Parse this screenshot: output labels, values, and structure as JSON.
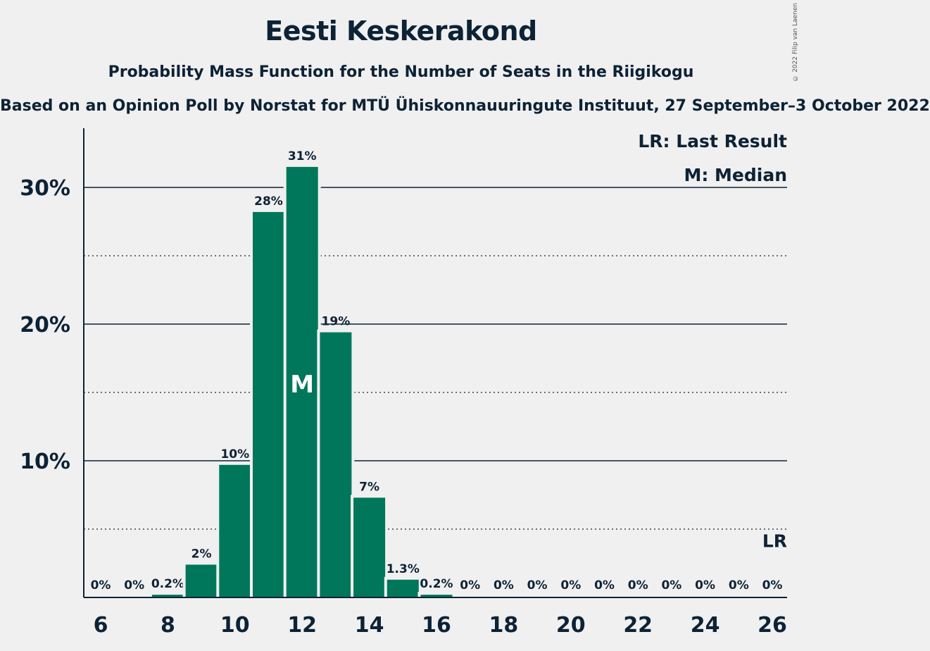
{
  "title": "Eesti Keskerakond",
  "subtitle": "Probability Mass Function for the Number of Seats in the Riigikogu",
  "source": "Based on an Opinion Poll by Norstat for MTÜ Ühiskonnauuringute Instituut, 27 September–3 October 2022",
  "copyright": "© 2022 Filip van Laenen",
  "legend": {
    "last_result": "LR: Last Result",
    "median": "M: Median"
  },
  "colors": {
    "bar": "#00775a",
    "text": "#0d2235",
    "background": "#f0f0f0"
  },
  "chart_data": {
    "type": "bar",
    "categories": [
      6,
      7,
      8,
      9,
      10,
      11,
      12,
      13,
      14,
      15,
      16,
      17,
      18,
      19,
      20,
      21,
      22,
      23,
      24,
      25,
      26
    ],
    "values": [
      0,
      0,
      0.2,
      2.4,
      9.7,
      28.2,
      31.5,
      19.4,
      7.3,
      1.3,
      0.2,
      0,
      0,
      0,
      0,
      0,
      0,
      0,
      0,
      0,
      0
    ],
    "labels": [
      "0%",
      "0%",
      "0.2%",
      "2%",
      "10%",
      "28%",
      "31%",
      "19%",
      "7%",
      "1.3%",
      "0.2%",
      "0%",
      "0%",
      "0%",
      "0%",
      "0%",
      "0%",
      "0%",
      "0%",
      "0%",
      "0%"
    ],
    "x_ticks": [
      6,
      8,
      10,
      12,
      14,
      16,
      18,
      20,
      22,
      24,
      26
    ],
    "y_ticks": [
      10,
      20,
      30
    ],
    "y_tick_labels": [
      "10%",
      "20%",
      "30%"
    ],
    "ylim": [
      0,
      34
    ],
    "median_seat": 12,
    "median_marker": "M",
    "last_result_seat": 26,
    "last_result_marker": "LR",
    "grid": "solid lines at 10% steps, dotted at 5% steps"
  }
}
